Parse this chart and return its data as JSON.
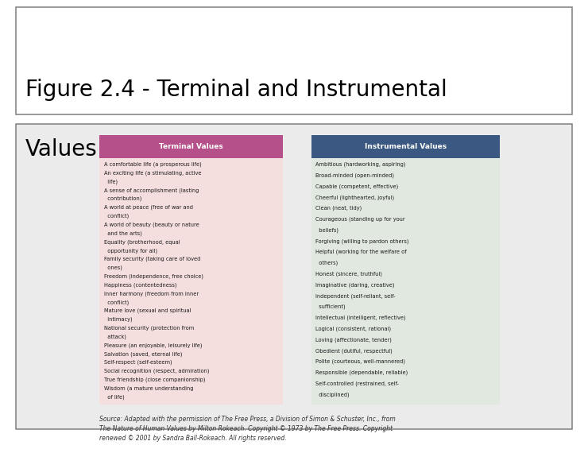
{
  "title_line1": "Figure 2.4 - Terminal and Instrumental",
  "title_line2": "Values",
  "title_fontsize": 20,
  "bg_color": "#ffffff",
  "content_bg_color": "#e0e0e0",
  "terminal_header_color": "#b5508a",
  "instrumental_header_color": "#3a5882",
  "terminal_bg_color": "#f5dede",
  "instrumental_bg_color": "#e0e8e0",
  "terminal_header_text": "Terminal Values",
  "instrumental_header_text": "Instrumental Values",
  "terminal_values": [
    "A comfortable life (a prosperous life)",
    "An exciting life (a stimulating, active",
    "  life)",
    "A sense of accomplishment (lasting",
    "  contribution)",
    "A world at peace (free of war and",
    "  conflict)",
    "A world of beauty (beauty or nature",
    "  and the arts)",
    "Equality (brotherhood, equal",
    "  opportunity for all)",
    "Family security (taking care of loved",
    "  ones)",
    "Freedom (independence, free choice)",
    "Happiness (contentedness)",
    "Inner harmony (freedom from inner",
    "  conflict)",
    "Mature love (sexual and spiritual",
    "  intimacy)",
    "National security (protection from",
    "  attack)",
    "Pleasure (an enjoyable, leisurely life)",
    "Salvation (saved, eternal life)",
    "Self-respect (self-esteem)",
    "Social recognition (respect, admiration)",
    "True friendship (close companionship)",
    "Wisdom (a mature understanding",
    "  of life)"
  ],
  "instrumental_values": [
    "Ambitious (hardworking, aspiring)",
    "Broad-minded (open-minded)",
    "Capable (competent, effective)",
    "Cheerful (lighthearted, joyful)",
    "Clean (neat, tidy)",
    "Courageous (standing up for your",
    "  beliefs)",
    "Forgiving (willing to pardon others)",
    "Helpful (working for the welfare of",
    "  others)",
    "Honest (sincere, truthful)",
    "Imaginative (daring, creative)",
    "Independent (self-reliant, self-",
    "  sufficient)",
    "Intellectual (intelligent, reflective)",
    "Logical (consistent, rational)",
    "Loving (affectionate, tender)",
    "Obedient (dutiful, respectful)",
    "Polite (courteous, well-mannered)",
    "Responsible (dependable, reliable)",
    "Self-controlled (restrained, self-",
    "  disciplined)"
  ],
  "source_text": "Source: Adapted with the permission of The Free Press, a Division of Simon & Schuster, Inc., from\nThe Nature of Human Values by Milton Rokeach. Copyright © 1973 by The Free Press. Copyright\nrenewed © 2001 by Sandra Ball-Rokeach. All rights reserved.",
  "source_fontsize": 5.5
}
